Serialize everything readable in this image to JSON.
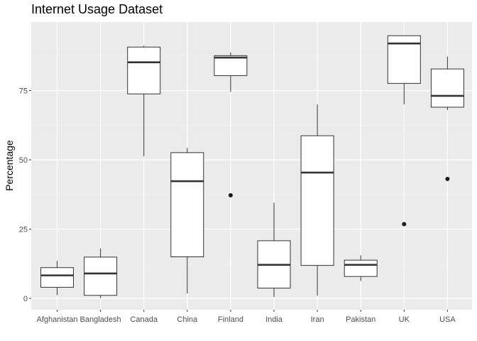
{
  "chart_data": {
    "type": "boxplot",
    "title": "Internet Usage Dataset",
    "xlabel": "",
    "ylabel": "Percentage",
    "ylim": [
      -3,
      100
    ],
    "yticks": [
      0,
      25,
      50,
      75
    ],
    "grid": true,
    "categories": [
      "Afghanistan",
      "Bangladesh",
      "Canada",
      "China",
      "Finland",
      "India",
      "Iran",
      "Pakistan",
      "UK",
      "USA"
    ],
    "boxes": [
      {
        "category": "Afghanistan",
        "whisker_low": 1.2,
        "q1": 4.0,
        "median": 8.3,
        "q3": 11.1,
        "whisker_high": 13.5,
        "outliers": []
      },
      {
        "category": "Bangladesh",
        "whisker_low": 0.1,
        "q1": 1.1,
        "median": 9.0,
        "q3": 14.9,
        "whisker_high": 18.0,
        "outliers": []
      },
      {
        "category": "Canada",
        "whisker_low": 51.3,
        "q1": 73.8,
        "median": 85.2,
        "q3": 90.7,
        "whisker_high": 91.2,
        "outliers": []
      },
      {
        "category": "China",
        "whisker_low": 1.8,
        "q1": 15.0,
        "median": 42.3,
        "q3": 52.6,
        "whisker_high": 54.3,
        "outliers": []
      },
      {
        "category": "Finland",
        "whisker_low": 74.5,
        "q1": 80.4,
        "median": 86.9,
        "q3": 87.6,
        "whisker_high": 88.8,
        "outliers": [
          37.2
        ]
      },
      {
        "category": "India",
        "whisker_low": 0.5,
        "q1": 3.7,
        "median": 12.1,
        "q3": 20.8,
        "whisker_high": 34.5,
        "outliers": []
      },
      {
        "category": "Iran",
        "whisker_low": 1.0,
        "q1": 11.9,
        "median": 45.4,
        "q3": 58.7,
        "whisker_high": 70.0,
        "outliers": []
      },
      {
        "category": "Pakistan",
        "whisker_low": 6.3,
        "q1": 7.9,
        "median": 12.1,
        "q3": 13.8,
        "whisker_high": 15.5,
        "outliers": []
      },
      {
        "category": "UK",
        "whisker_low": 70.0,
        "q1": 77.6,
        "median": 92.0,
        "q3": 94.8,
        "whisker_high": 94.8,
        "outliers": [
          26.8
        ]
      },
      {
        "category": "USA",
        "whisker_low": 68.0,
        "q1": 69.0,
        "median": 73.1,
        "q3": 82.8,
        "whisker_high": 87.3,
        "outliers": [
          43.1
        ]
      }
    ],
    "colors": {
      "panel": "#ebebeb",
      "grid_major": "#ffffff",
      "box_fill": "#ffffff",
      "box_stroke": "#333333",
      "point": "#1a1a1a",
      "tick_text": "#4d4d4d"
    }
  }
}
